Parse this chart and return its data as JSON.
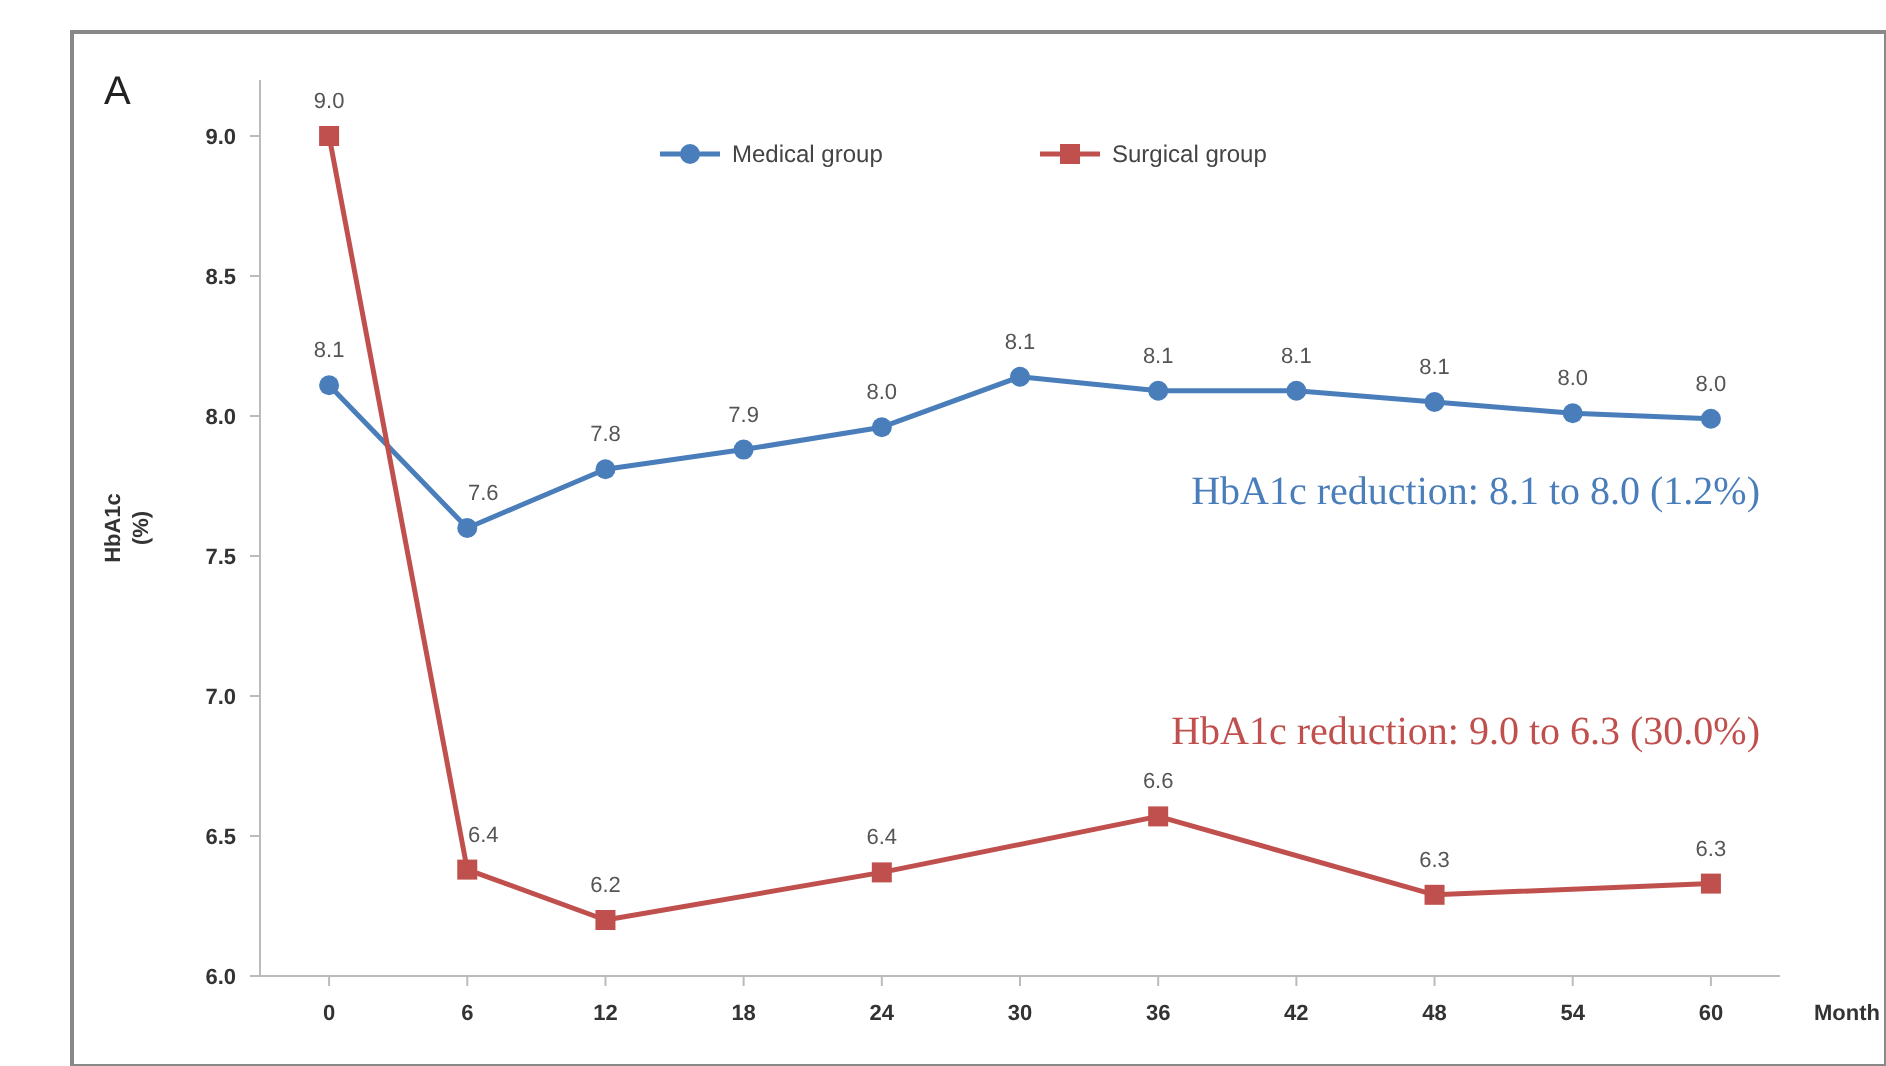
{
  "chart_data": {
    "type": "line",
    "xlabel": "Month",
    "ylabel": "HbA1c (%)",
    "annotations": [
      "A",
      "HbA1c reduction: 8.1 to 8.0 (1.2%)",
      "HbA1c reduction: 9.0 to 6.3 (30.0%)"
    ],
    "xlim": [
      -3,
      63
    ],
    "xticks": [
      0,
      6,
      12,
      18,
      24,
      30,
      36,
      42,
      48,
      54,
      60
    ],
    "ylim": [
      6,
      9.2
    ],
    "yticks": [
      {
        "value": 6,
        "label": "6.0"
      },
      {
        "value": 6.5,
        "label": "6.5"
      },
      {
        "value": 7,
        "label": "7.0"
      },
      {
        "value": 7.5,
        "label": "7.5"
      },
      {
        "value": 8,
        "label": "8.0"
      },
      {
        "value": 8.5,
        "label": "8.5"
      },
      {
        "value": 9,
        "label": "9.0"
      }
    ],
    "grid": false,
    "legend": "top",
    "series": [
      {
        "name": "Medical group",
        "color": "#4a7ebb",
        "marker": "circle",
        "x": [
          0,
          6,
          12,
          18,
          24,
          30,
          36,
          42,
          48,
          54,
          60
        ],
        "values": [
          8.11,
          7.6,
          7.81,
          7.88,
          7.96,
          8.14,
          8.09,
          8.09,
          8.05,
          8.01,
          7.99
        ],
        "value_labels": [
          "8.1",
          "7.6",
          "7.8",
          "7.9",
          "8.0",
          "8.1",
          "8.1",
          "8.1",
          "8.1",
          "8.0",
          "8.0"
        ]
      },
      {
        "name": "Surgical group",
        "color": "#c0504d",
        "marker": "square",
        "x": [
          0,
          6,
          12,
          24,
          36,
          48,
          60
        ],
        "values": [
          9.0,
          6.38,
          6.2,
          6.37,
          6.57,
          6.29,
          6.33
        ],
        "value_labels": [
          "9.0",
          "6.4",
          "6.2",
          "6.4",
          "6.6",
          "6.3",
          "6.3"
        ]
      }
    ]
  }
}
